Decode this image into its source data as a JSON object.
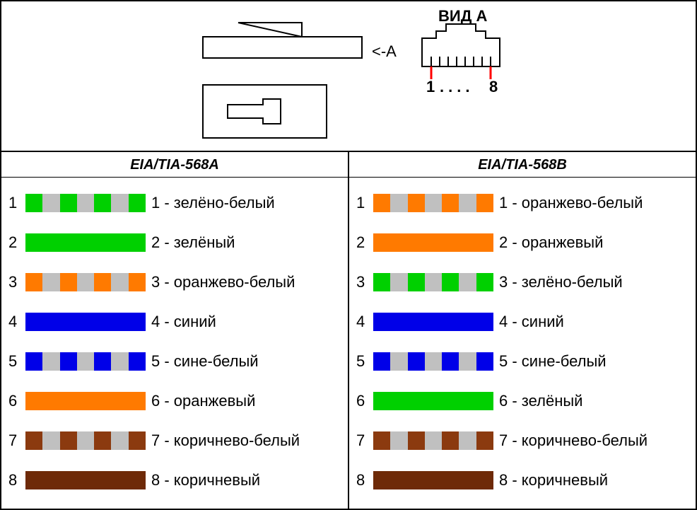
{
  "header": {
    "view_label": "ВИД А",
    "arrow_label": "<-А",
    "pin_start": "1",
    "pin_dots": "....",
    "pin_end": "8"
  },
  "standards": {
    "left": {
      "title": "EIA/TIA-568A"
    },
    "right": {
      "title": "EIA/TIA-568B"
    }
  },
  "colors": {
    "green": "#00d000",
    "orange": "#ff7a00",
    "blue": "#0000e8",
    "brown": "#8b3a0f",
    "brown_dark": "#6e2a08",
    "stripe_white": "#c0c0c0"
  },
  "left_wires": [
    {
      "n": "1",
      "label": "1 - зелёно-белый",
      "type": "striped",
      "color_key": "green"
    },
    {
      "n": "2",
      "label": "2 - зелёный",
      "type": "solid",
      "color_key": "green"
    },
    {
      "n": "3",
      "label": "3 - оранжево-белый",
      "type": "striped",
      "color_key": "orange"
    },
    {
      "n": "4",
      "label": "4 - синий",
      "type": "solid",
      "color_key": "blue"
    },
    {
      "n": "5",
      "label": "5 - сине-белый",
      "type": "striped",
      "color_key": "blue"
    },
    {
      "n": "6",
      "label": "6 - оранжевый",
      "type": "solid",
      "color_key": "orange"
    },
    {
      "n": "7",
      "label": "7 - коричнево-белый",
      "type": "striped",
      "color_key": "brown"
    },
    {
      "n": "8",
      "label": "8 - коричневый",
      "type": "solid",
      "color_key": "brown_dark"
    }
  ],
  "right_wires": [
    {
      "n": "1",
      "label": "1 - оранжево-белый",
      "type": "striped",
      "color_key": "orange"
    },
    {
      "n": "2",
      "label": "2 - оранжевый",
      "type": "solid",
      "color_key": "orange"
    },
    {
      "n": "3",
      "label": "3 - зелёно-белый",
      "type": "striped",
      "color_key": "green"
    },
    {
      "n": "4",
      "label": "4 - синий",
      "type": "solid",
      "color_key": "blue"
    },
    {
      "n": "5",
      "label": "5 - сине-белый",
      "type": "striped",
      "color_key": "blue"
    },
    {
      "n": "6",
      "label": "6 - зелёный",
      "type": "solid",
      "color_key": "green"
    },
    {
      "n": "7",
      "label": "7 - коричнево-белый",
      "type": "striped",
      "color_key": "brown"
    },
    {
      "n": "8",
      "label": "8 - коричневый",
      "type": "solid",
      "color_key": "brown_dark"
    }
  ],
  "diagram": {
    "stroke": "#000000",
    "pin_marker_color": "#ff0000"
  }
}
